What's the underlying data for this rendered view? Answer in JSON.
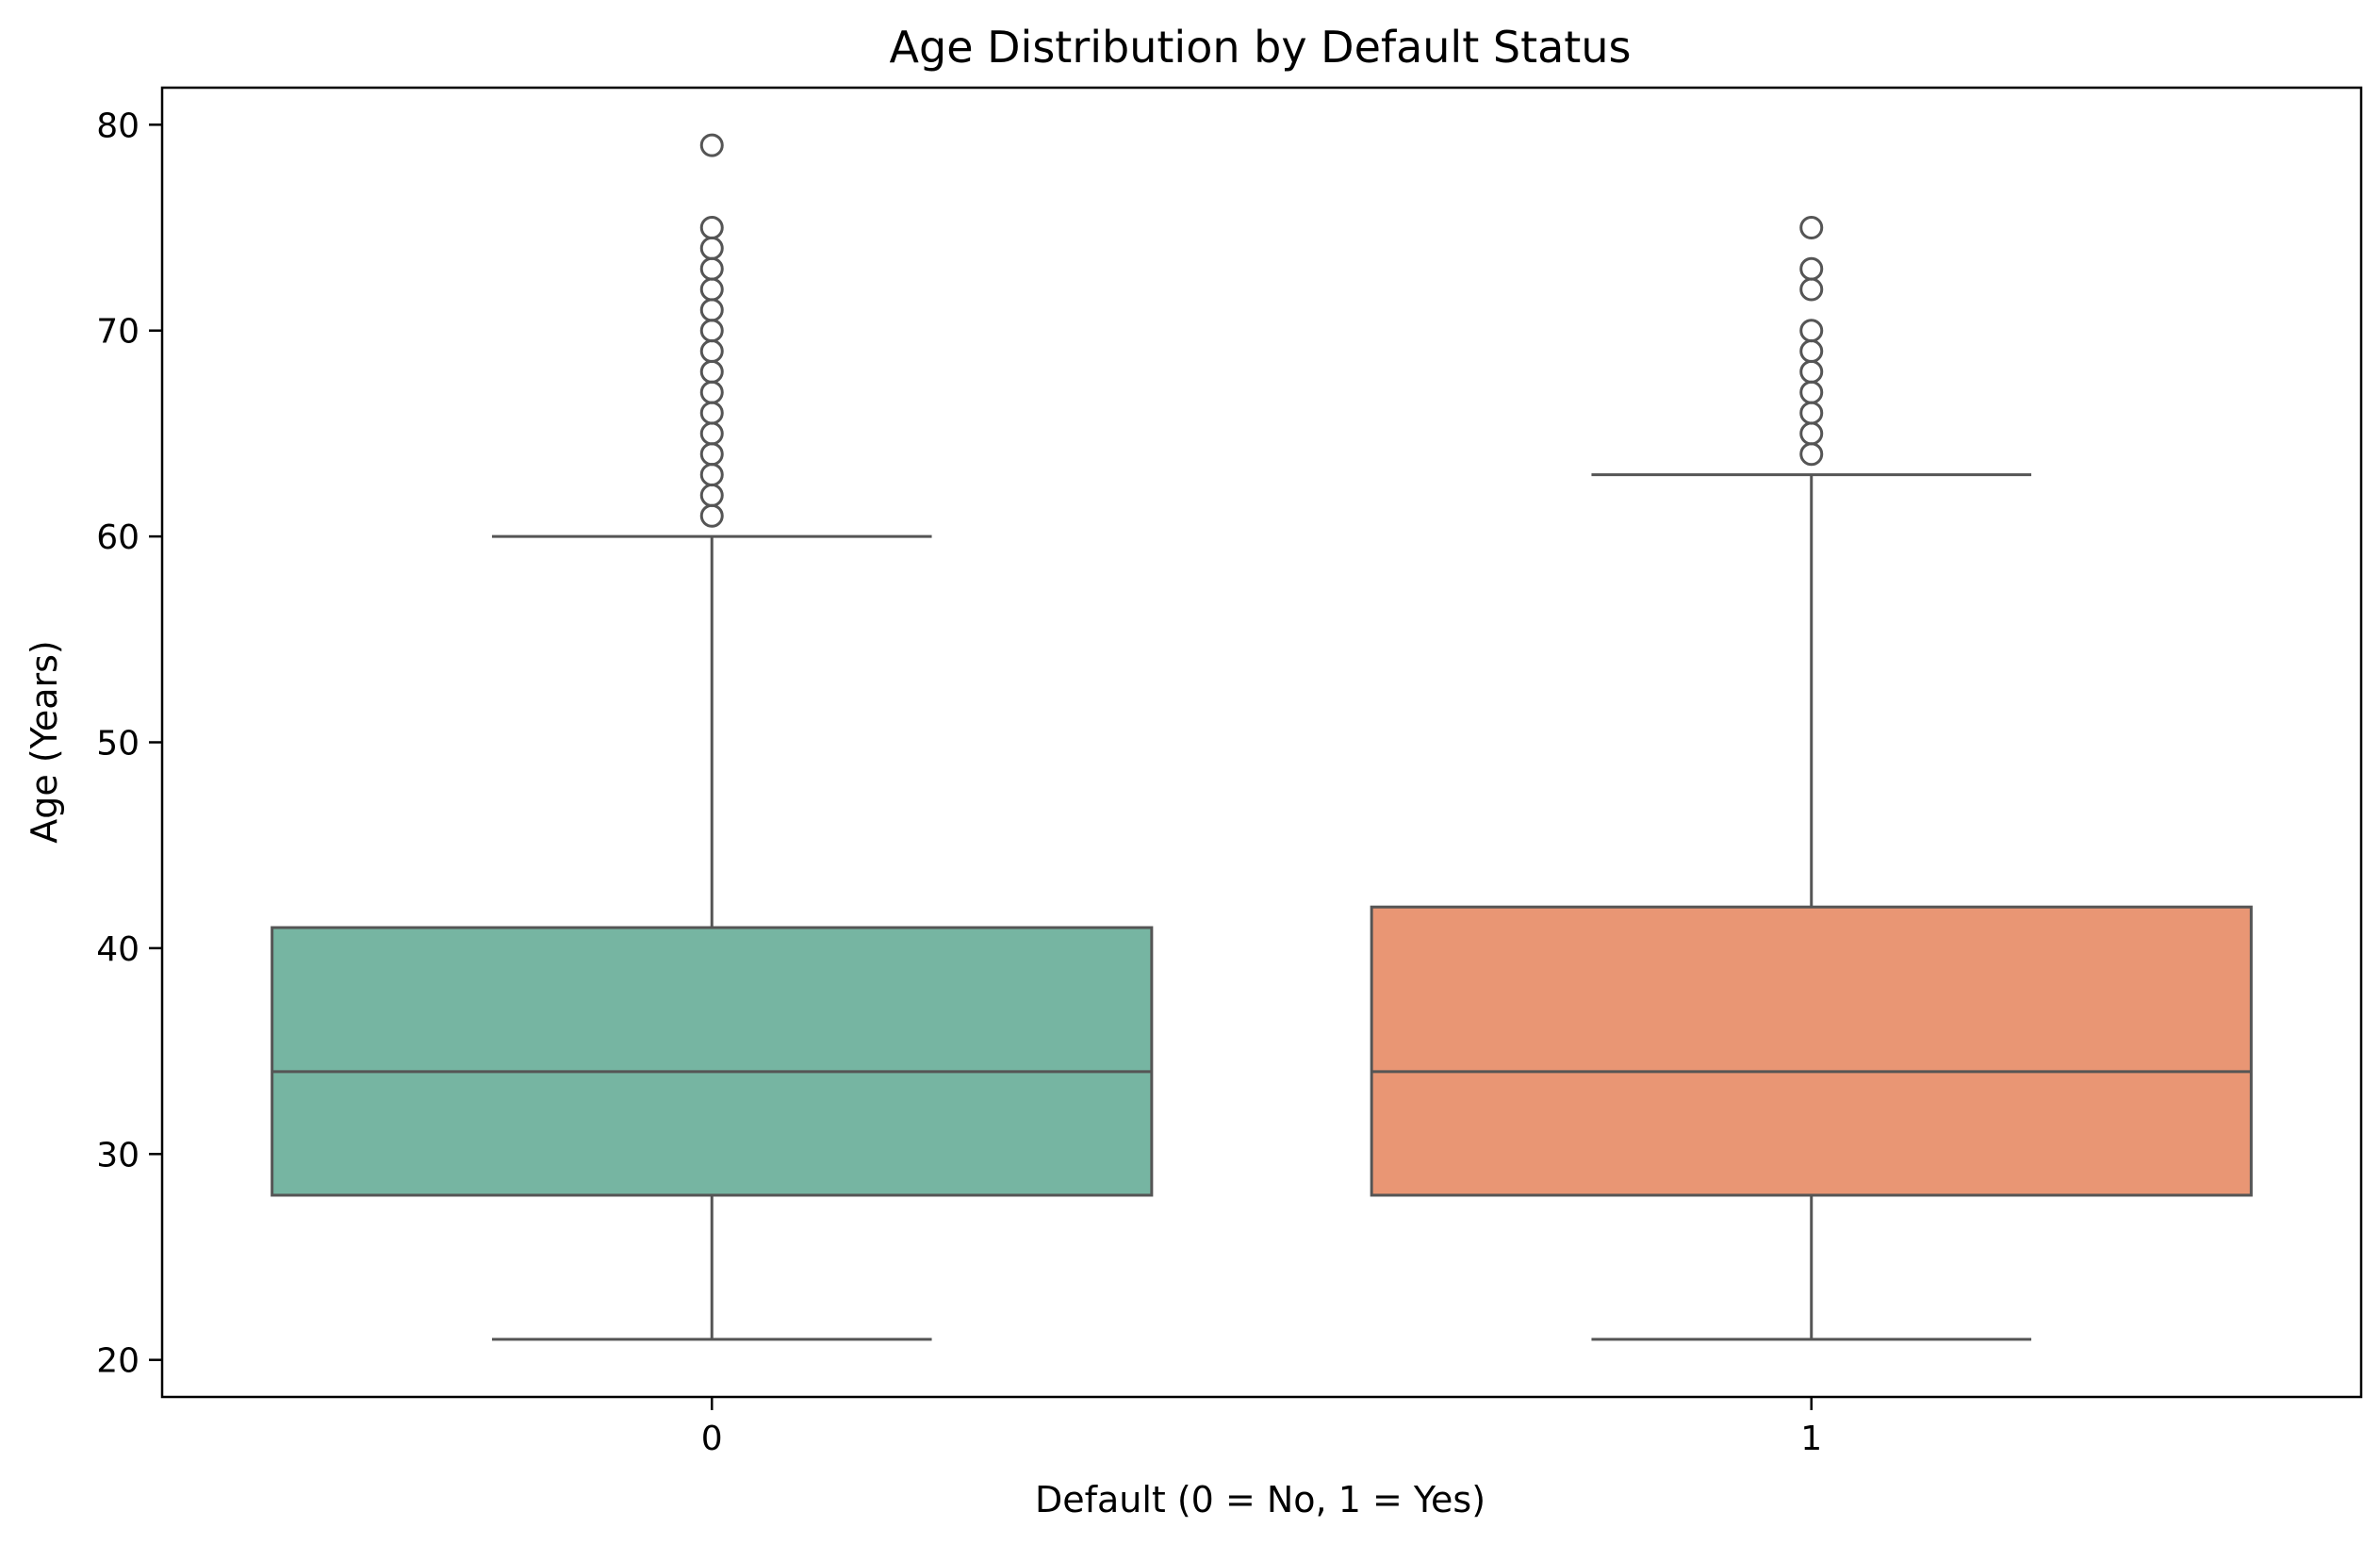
{
  "chart_data": {
    "type": "box",
    "title": "Age Distribution by Default Status",
    "xlabel": "Default (0 = No, 1 = Yes)",
    "ylabel": "Age (Years)",
    "ylim": [
      18.2,
      81.8
    ],
    "yticks": [
      20,
      30,
      40,
      50,
      60,
      70,
      80
    ],
    "categories": [
      "0",
      "1"
    ],
    "grid": false,
    "legend": "none",
    "series": [
      {
        "category": "0",
        "color": "#76b5a2",
        "whisker_low": 21,
        "q1": 28,
        "median": 34,
        "q3": 41,
        "whisker_high": 60,
        "outliers": [
          61,
          62,
          63,
          64,
          65,
          66,
          67,
          68,
          69,
          70,
          71,
          72,
          73,
          74,
          75,
          79
        ]
      },
      {
        "category": "1",
        "color": "#e99674",
        "whisker_low": 21,
        "q1": 28,
        "median": 34,
        "q3": 42,
        "whisker_high": 63,
        "outliers": [
          64,
          65,
          66,
          67,
          68,
          69,
          70,
          72,
          73,
          75
        ]
      }
    ],
    "line_color": "#555555"
  }
}
